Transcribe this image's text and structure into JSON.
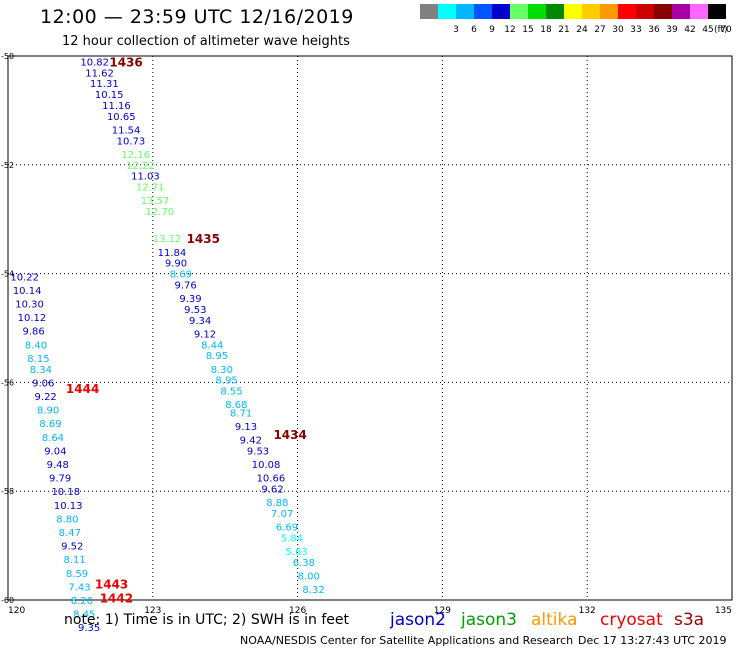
{
  "header": {
    "title": "12:00 — 23:59 UTC 12/16/2019",
    "subtitle": "12 hour collection of altimeter wave heights"
  },
  "footer": {
    "note": "note:  1) Time is in UTC;  2) SWH is in feet",
    "credit": "NOAA/NESDIS Center for Satellite Applications and Research",
    "timestamp": "Dec 17 13:27:43 UTC 2019"
  },
  "satellites": [
    {
      "name": "jason2",
      "color": "#0000cc"
    },
    {
      "name": "jason3",
      "color": "#00a000"
    },
    {
      "name": "altika",
      "color": "#ff9900"
    },
    {
      "name": "cryosat",
      "color": "#ee0000"
    },
    {
      "name": "s3a",
      "color": "#990000"
    }
  ],
  "colorbar": {
    "unit": "(ft)",
    "swatches": [
      {
        "label": "",
        "color": "#808080"
      },
      {
        "label": "3",
        "color": "#00ffff"
      },
      {
        "label": "6",
        "color": "#00b8ff"
      },
      {
        "label": "9",
        "color": "#0055ff"
      },
      {
        "label": "12",
        "color": "#0000cc"
      },
      {
        "label": "15",
        "color": "#66ff66"
      },
      {
        "label": "18",
        "color": "#00dd00"
      },
      {
        "label": "21",
        "color": "#008800"
      },
      {
        "label": "24",
        "color": "#ffff00"
      },
      {
        "label": "27",
        "color": "#ffcc00"
      },
      {
        "label": "30",
        "color": "#ff9900"
      },
      {
        "label": "33",
        "color": "#ff0000"
      },
      {
        "label": "36",
        "color": "#cc0000"
      },
      {
        "label": "39",
        "color": "#880000"
      },
      {
        "label": "42",
        "color": "#aa00aa"
      },
      {
        "label": "45",
        "color": "#ff66ff"
      },
      {
        "label": "70",
        "color": "#000000"
      }
    ]
  },
  "chart_data": {
    "type": "scatter",
    "xlim": [
      120,
      135
    ],
    "ylim": [
      -60,
      -50
    ],
    "x_ticks": [
      "120",
      "123",
      "126",
      "129",
      "132",
      "135"
    ],
    "y_ticks": [
      "-50",
      "-52",
      "-54",
      "-56",
      "-58",
      "-60"
    ],
    "grid": true,
    "pass_labels": [
      {
        "text": "1436",
        "x": 122.1,
        "y": -50.1,
        "color": "#880000"
      },
      {
        "text": "1435",
        "x": 123.7,
        "y": -53.35,
        "color": "#880000"
      },
      {
        "text": "1444",
        "x": 121.2,
        "y": -56.1,
        "color": "#ee0000"
      },
      {
        "text": "1434",
        "x": 125.5,
        "y": -56.95,
        "color": "#880000"
      },
      {
        "text": "1443",
        "x": 121.8,
        "y": -59.7,
        "color": "#ee0000"
      },
      {
        "text": "1442",
        "x": 121.9,
        "y": -59.95,
        "color": "#ee0000"
      }
    ],
    "observations": [
      {
        "x": 121.5,
        "y": -50.1,
        "swh": "10.82",
        "color": "#0000cc"
      },
      {
        "x": 121.6,
        "y": -50.3,
        "swh": "11.62",
        "color": "#0000cc"
      },
      {
        "x": 121.7,
        "y": -50.5,
        "swh": "11.31",
        "color": "#0000cc"
      },
      {
        "x": 121.8,
        "y": -50.7,
        "swh": "10.15",
        "color": "#0000cc"
      },
      {
        "x": 121.95,
        "y": -50.9,
        "swh": "11.16",
        "color": "#0000cc"
      },
      {
        "x": 122.05,
        "y": -51.1,
        "swh": "10.65",
        "color": "#0000cc"
      },
      {
        "x": 122.15,
        "y": -51.35,
        "swh": "11.54",
        "color": "#0000cc"
      },
      {
        "x": 122.25,
        "y": -51.55,
        "swh": "10.73",
        "color": "#0000cc"
      },
      {
        "x": 122.35,
        "y": -51.8,
        "swh": "12.16",
        "color": "#66ff66"
      },
      {
        "x": 122.45,
        "y": -52.0,
        "swh": "12.22",
        "color": "#66ff66"
      },
      {
        "x": 122.55,
        "y": -52.2,
        "swh": "11.03",
        "color": "#0000cc"
      },
      {
        "x": 122.65,
        "y": -52.4,
        "swh": "12.71",
        "color": "#66ff66"
      },
      {
        "x": 122.75,
        "y": -52.65,
        "swh": "13.57",
        "color": "#66ff66"
      },
      {
        "x": 122.85,
        "y": -52.85,
        "swh": "12.70",
        "color": "#66ff66"
      },
      {
        "x": 123.0,
        "y": -53.35,
        "swh": "13.12",
        "color": "#66ff66"
      },
      {
        "x": 123.1,
        "y": -53.6,
        "swh": "11.84",
        "color": "#0000cc"
      },
      {
        "x": 123.25,
        "y": -53.8,
        "swh": "9.90",
        "color": "#0000cc"
      },
      {
        "x": 123.35,
        "y": -54.0,
        "swh": "8.69",
        "color": "#00b8ff"
      },
      {
        "x": 123.45,
        "y": -54.2,
        "swh": "9.76",
        "color": "#0000cc"
      },
      {
        "x": 123.55,
        "y": -54.45,
        "swh": "9.39",
        "color": "#0000cc"
      },
      {
        "x": 123.65,
        "y": -54.65,
        "swh": "9.53",
        "color": "#0000cc"
      },
      {
        "x": 123.75,
        "y": -54.85,
        "swh": "9.34",
        "color": "#0000cc"
      },
      {
        "x": 123.85,
        "y": -55.1,
        "swh": "9.12",
        "color": "#0000cc"
      },
      {
        "x": 124.0,
        "y": -55.3,
        "swh": "8.44",
        "color": "#00b8ff"
      },
      {
        "x": 124.1,
        "y": -55.5,
        "swh": "8.95",
        "color": "#00b8ff"
      },
      {
        "x": 124.2,
        "y": -55.75,
        "swh": "8.30",
        "color": "#00b8ff"
      },
      {
        "x": 124.3,
        "y": -55.95,
        "swh": "8.95",
        "color": "#00b8ff"
      },
      {
        "x": 124.4,
        "y": -56.15,
        "swh": "8.55",
        "color": "#00b8ff"
      },
      {
        "x": 124.5,
        "y": -56.4,
        "swh": "8.68",
        "color": "#00b8ff"
      },
      {
        "x": 124.6,
        "y": -56.55,
        "swh": "8.71",
        "color": "#00b8ff"
      },
      {
        "x": 124.7,
        "y": -56.8,
        "swh": "9.13",
        "color": "#0000cc"
      },
      {
        "x": 124.8,
        "y": -57.05,
        "swh": "9.42",
        "color": "#0000cc"
      },
      {
        "x": 124.95,
        "y": -57.25,
        "swh": "9.53",
        "color": "#0000cc"
      },
      {
        "x": 125.05,
        "y": -57.5,
        "swh": "10.08",
        "color": "#0000cc"
      },
      {
        "x": 125.15,
        "y": -57.75,
        "swh": "10.66",
        "color": "#0000cc"
      },
      {
        "x": 125.25,
        "y": -57.95,
        "swh": "9.62",
        "color": "#0000cc"
      },
      {
        "x": 125.35,
        "y": -58.2,
        "swh": "8.88",
        "color": "#00b8ff"
      },
      {
        "x": 125.45,
        "y": -58.4,
        "swh": "7.07",
        "color": "#00b8ff"
      },
      {
        "x": 125.55,
        "y": -58.65,
        "swh": "6.69",
        "color": "#00b8ff"
      },
      {
        "x": 125.65,
        "y": -58.85,
        "swh": "5.84",
        "color": "#00ffff"
      },
      {
        "x": 125.75,
        "y": -59.1,
        "swh": "5.63",
        "color": "#00ffff"
      },
      {
        "x": 125.9,
        "y": -59.3,
        "swh": "6.38",
        "color": "#00b8ff"
      },
      {
        "x": 126.0,
        "y": -59.55,
        "swh": "8.00",
        "color": "#00b8ff"
      },
      {
        "x": 126.1,
        "y": -59.8,
        "swh": "8.32",
        "color": "#00b8ff"
      },
      {
        "x": 120.05,
        "y": -54.05,
        "swh": "10.22",
        "color": "#0000cc"
      },
      {
        "x": 120.1,
        "y": -54.3,
        "swh": "10.14",
        "color": "#0000cc"
      },
      {
        "x": 120.15,
        "y": -54.55,
        "swh": "10.30",
        "color": "#0000cc"
      },
      {
        "x": 120.2,
        "y": -54.8,
        "swh": "10.12",
        "color": "#0000cc"
      },
      {
        "x": 120.3,
        "y": -55.05,
        "swh": "9.86",
        "color": "#0000cc"
      },
      {
        "x": 120.35,
        "y": -55.3,
        "swh": "8.40",
        "color": "#00b8ff"
      },
      {
        "x": 120.4,
        "y": -55.55,
        "swh": "8.15",
        "color": "#00b8ff"
      },
      {
        "x": 120.45,
        "y": -55.75,
        "swh": "8.34",
        "color": "#00b8ff"
      },
      {
        "x": 120.5,
        "y": -56.0,
        "swh": "9.06",
        "color": "#0000cc"
      },
      {
        "x": 120.55,
        "y": -56.25,
        "swh": "9.22",
        "color": "#0000cc"
      },
      {
        "x": 120.6,
        "y": -56.5,
        "swh": "8.90",
        "color": "#00b8ff"
      },
      {
        "x": 120.65,
        "y": -56.75,
        "swh": "8.69",
        "color": "#00b8ff"
      },
      {
        "x": 120.7,
        "y": -57.0,
        "swh": "8.64",
        "color": "#00b8ff"
      },
      {
        "x": 120.75,
        "y": -57.25,
        "swh": "9.04",
        "color": "#0000cc"
      },
      {
        "x": 120.8,
        "y": -57.5,
        "swh": "9.48",
        "color": "#0000cc"
      },
      {
        "x": 120.85,
        "y": -57.75,
        "swh": "9.79",
        "color": "#0000cc"
      },
      {
        "x": 120.9,
        "y": -58.0,
        "swh": "10.18",
        "color": "#0000cc"
      },
      {
        "x": 120.95,
        "y": -58.25,
        "swh": "10.13",
        "color": "#0000cc"
      },
      {
        "x": 121.0,
        "y": -58.5,
        "swh": "8.80",
        "color": "#00b8ff"
      },
      {
        "x": 121.05,
        "y": -58.75,
        "swh": "8.47",
        "color": "#00b8ff"
      },
      {
        "x": 121.1,
        "y": -59.0,
        "swh": "9.52",
        "color": "#0000cc"
      },
      {
        "x": 121.15,
        "y": -59.25,
        "swh": "8.11",
        "color": "#00b8ff"
      },
      {
        "x": 121.2,
        "y": -59.5,
        "swh": "8.59",
        "color": "#00b8ff"
      },
      {
        "x": 121.25,
        "y": -59.75,
        "swh": "7.43",
        "color": "#00b8ff"
      },
      {
        "x": 121.3,
        "y": -60.0,
        "swh": "8.20",
        "color": "#00b8ff"
      },
      {
        "x": 121.35,
        "y": -60.25,
        "swh": "8.45",
        "color": "#00b8ff"
      },
      {
        "x": 121.45,
        "y": -60.5,
        "swh": "9.35",
        "color": "#0000cc"
      }
    ]
  }
}
